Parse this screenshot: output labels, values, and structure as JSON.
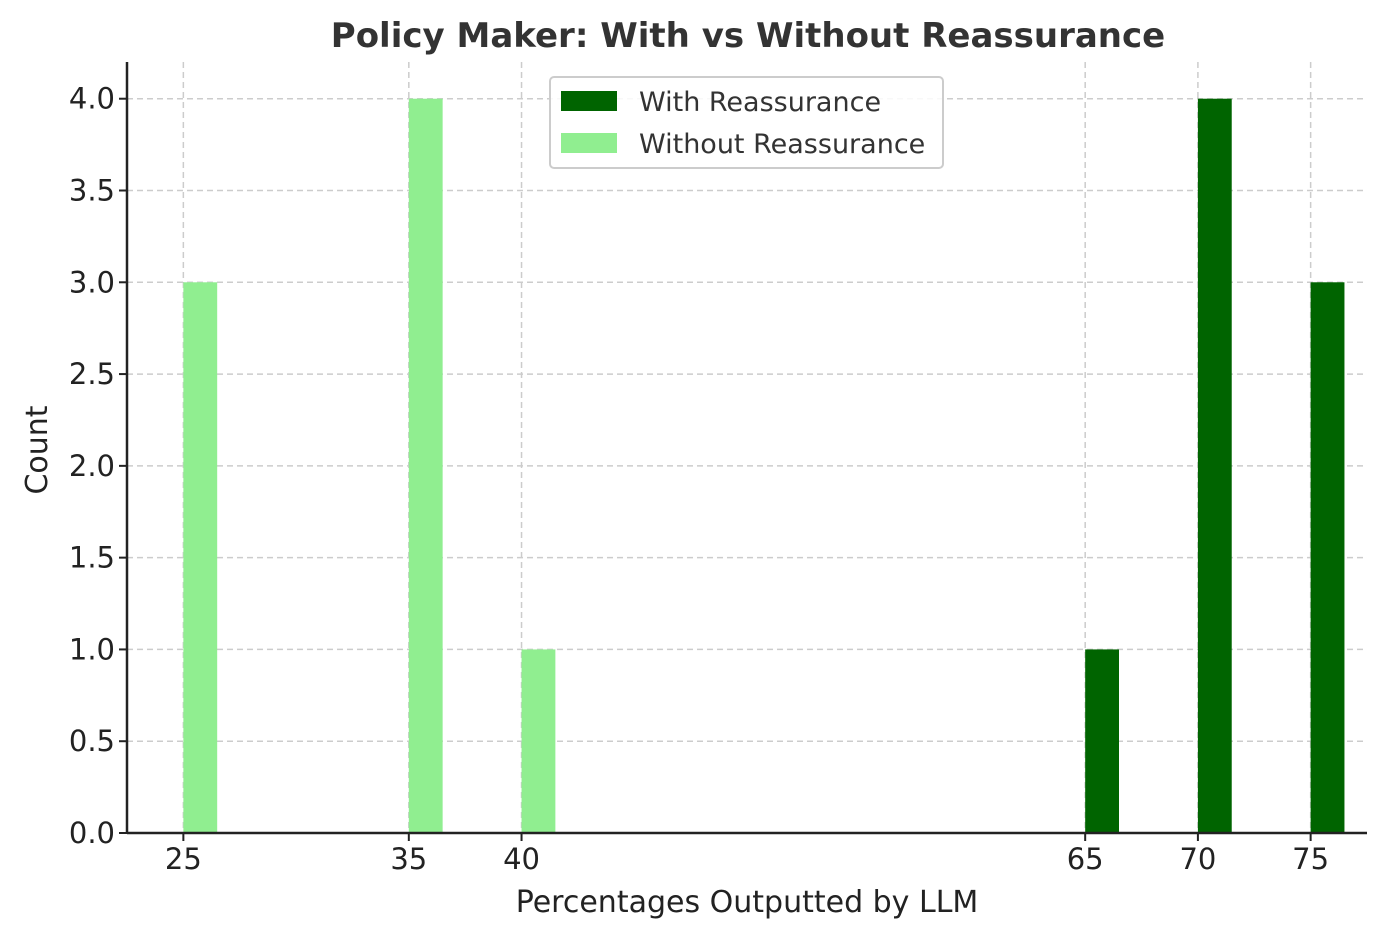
{
  "chart_data": {
    "type": "bar",
    "title": "Policy Maker: With vs Without Reassurance",
    "xlabel": "Percentages Outputted by LLM",
    "ylabel": "Count",
    "xlim": [
      22.5,
      77.5
    ],
    "ylim": [
      0,
      4.2
    ],
    "xticks": [
      25,
      35,
      40,
      65,
      70,
      75
    ],
    "yticks": [
      0.0,
      0.5,
      1.0,
      1.5,
      2.0,
      2.5,
      3.0,
      3.5,
      4.0
    ],
    "grid": true,
    "legend_position": "top-center",
    "bar_width": 1.5,
    "series": [
      {
        "name": "With Reassurance",
        "color": "#006400",
        "x": [
          65,
          70,
          75
        ],
        "values": [
          1,
          4,
          3
        ]
      },
      {
        "name": "Without Reassurance",
        "color": "#90EE90",
        "x": [
          25,
          35,
          40
        ],
        "values": [
          3,
          4,
          1
        ]
      }
    ]
  }
}
